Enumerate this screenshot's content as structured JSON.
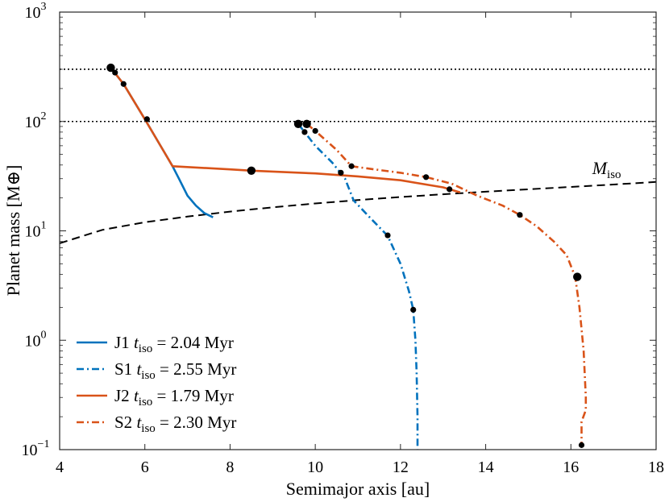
{
  "chart_data": {
    "type": "line",
    "xscale": "linear",
    "yscale": "log",
    "xlim": [
      4,
      18
    ],
    "ylim": [
      0.1,
      1000
    ],
    "xlabel": "Semimajor axis [au]",
    "ylabel": "Planet mass [M⊕]",
    "xticks": [
      4,
      6,
      8,
      10,
      12,
      14,
      16,
      18
    ],
    "xtick_labels": [
      "4",
      "6",
      "8",
      "10",
      "12",
      "14",
      "16",
      "18"
    ],
    "yticks": [
      0.1,
      1,
      10,
      100,
      1000
    ],
    "ytick_labels": [
      {
        "base": "10",
        "exp": "−1"
      },
      {
        "base": "10",
        "exp": "0"
      },
      {
        "base": "10",
        "exp": "1"
      },
      {
        "base": "10",
        "exp": "2"
      },
      {
        "base": "10",
        "exp": "3"
      }
    ],
    "reference_lines": [
      {
        "type": "horizontal",
        "y": 300,
        "style": "dotted",
        "color": "#000000"
      },
      {
        "type": "horizontal",
        "y": 100,
        "style": "dotted",
        "color": "#000000"
      }
    ],
    "isolation_curve": {
      "label": "M",
      "label_sub": "iso",
      "label_at": [
        16.5,
        33
      ],
      "color": "#000000",
      "style": "dashed",
      "x": [
        4,
        5,
        6,
        7,
        8,
        9,
        10,
        11,
        12,
        13,
        14,
        15,
        16,
        17,
        18
      ],
      "y": [
        7.7,
        10.2,
        12.0,
        13.5,
        15.0,
        16.4,
        17.8,
        19.1,
        20.4,
        21.6,
        22.8,
        24.0,
        25.2,
        26.5,
        28.0
      ]
    },
    "series": [
      {
        "name": "J1",
        "t_iso": "2.04",
        "style": "solid",
        "color": "#0072BD",
        "x": [
          5.2,
          5.5,
          6.0,
          6.4,
          6.65,
          6.8,
          7.0,
          7.2,
          7.4,
          7.6
        ],
        "y": [
          310,
          220,
          105,
          57,
          39,
          30,
          21,
          17,
          14.5,
          13.3
        ],
        "markers_small": [],
        "markers_big": []
      },
      {
        "name": "S1",
        "t_iso": "2.55",
        "style": "dashdot",
        "color": "#0072BD",
        "x": [
          9.6,
          9.75,
          10.0,
          10.4,
          10.7,
          10.9,
          11.3,
          11.7,
          12.0,
          12.2,
          12.3,
          12.35,
          12.38,
          12.4,
          12.4
        ],
        "y": [
          95,
          80,
          60,
          42,
          30,
          19,
          13,
          9,
          5,
          2.8,
          1.9,
          1.0,
          0.5,
          0.2,
          0.1
        ],
        "markers_small": [
          [
            9.75,
            80
          ],
          [
            11.7,
            9.1
          ],
          [
            12.3,
            1.9
          ]
        ],
        "markers_big": [
          [
            9.6,
            95
          ]
        ]
      },
      {
        "name": "J2",
        "t_iso": "1.79",
        "style": "solid",
        "color": "#D95319",
        "x": [
          5.2,
          5.5,
          6.0,
          6.4,
          6.65,
          8.0,
          8.5,
          10.0,
          11.0,
          12.0,
          13.0,
          13.4
        ],
        "y": [
          310,
          220,
          105,
          57,
          39,
          36.5,
          35.5,
          33.5,
          31.5,
          29,
          25,
          22.5
        ],
        "markers_small": [
          [
            5.3,
            280
          ],
          [
            5.5,
            220
          ],
          [
            6.05,
            105
          ]
        ],
        "markers_big": [
          [
            5.2,
            310
          ],
          [
            8.5,
            35.5
          ]
        ]
      },
      {
        "name": "S2",
        "t_iso": "2.30",
        "style": "dashdot",
        "color": "#D95319",
        "x": [
          9.8,
          10.0,
          10.5,
          10.85,
          11.5,
          12.0,
          12.6,
          13.2,
          13.8,
          14.4,
          14.8,
          15.2,
          15.6,
          15.9,
          16.1,
          16.2,
          16.3,
          16.35,
          16.35,
          16.25,
          16.25
        ],
        "y": [
          95,
          82,
          55,
          39,
          36,
          34,
          31,
          27,
          21,
          17,
          14,
          11,
          8,
          6,
          3.8,
          2.0,
          0.8,
          0.3,
          0.23,
          0.18,
          0.11
        ],
        "markers_small": [
          [
            10.0,
            82
          ],
          [
            10.85,
            39
          ],
          [
            12.6,
            31
          ],
          [
            13.15,
            24
          ],
          [
            14.8,
            14
          ],
          [
            16.25,
            0.11
          ],
          [
            10.6,
            34
          ]
        ],
        "markers_big": [
          [
            9.8,
            95
          ],
          [
            16.15,
            3.8
          ]
        ]
      }
    ],
    "legend": {
      "placement": "bottom-left",
      "entries": [
        {
          "series": "J1",
          "style": "solid",
          "color": "#0072BD",
          "label": "J1",
          "t_sym": "t",
          "t_sub": "iso",
          "value": "= 2.04",
          "unit": "Myr"
        },
        {
          "series": "S1",
          "style": "dashdot",
          "color": "#0072BD",
          "label": "S1",
          "t_sym": "t",
          "t_sub": "iso",
          "value": "= 2.55",
          "unit": "Myr"
        },
        {
          "series": "J2",
          "style": "solid",
          "color": "#D95319",
          "label": "J2",
          "t_sym": "t",
          "t_sub": "iso",
          "value": "= 1.79",
          "unit": "Myr"
        },
        {
          "series": "S2",
          "style": "dashdot",
          "color": "#D95319",
          "label": "S2",
          "t_sym": "t",
          "t_sub": "iso",
          "value": "= 2.30",
          "unit": "Myr"
        }
      ]
    }
  }
}
